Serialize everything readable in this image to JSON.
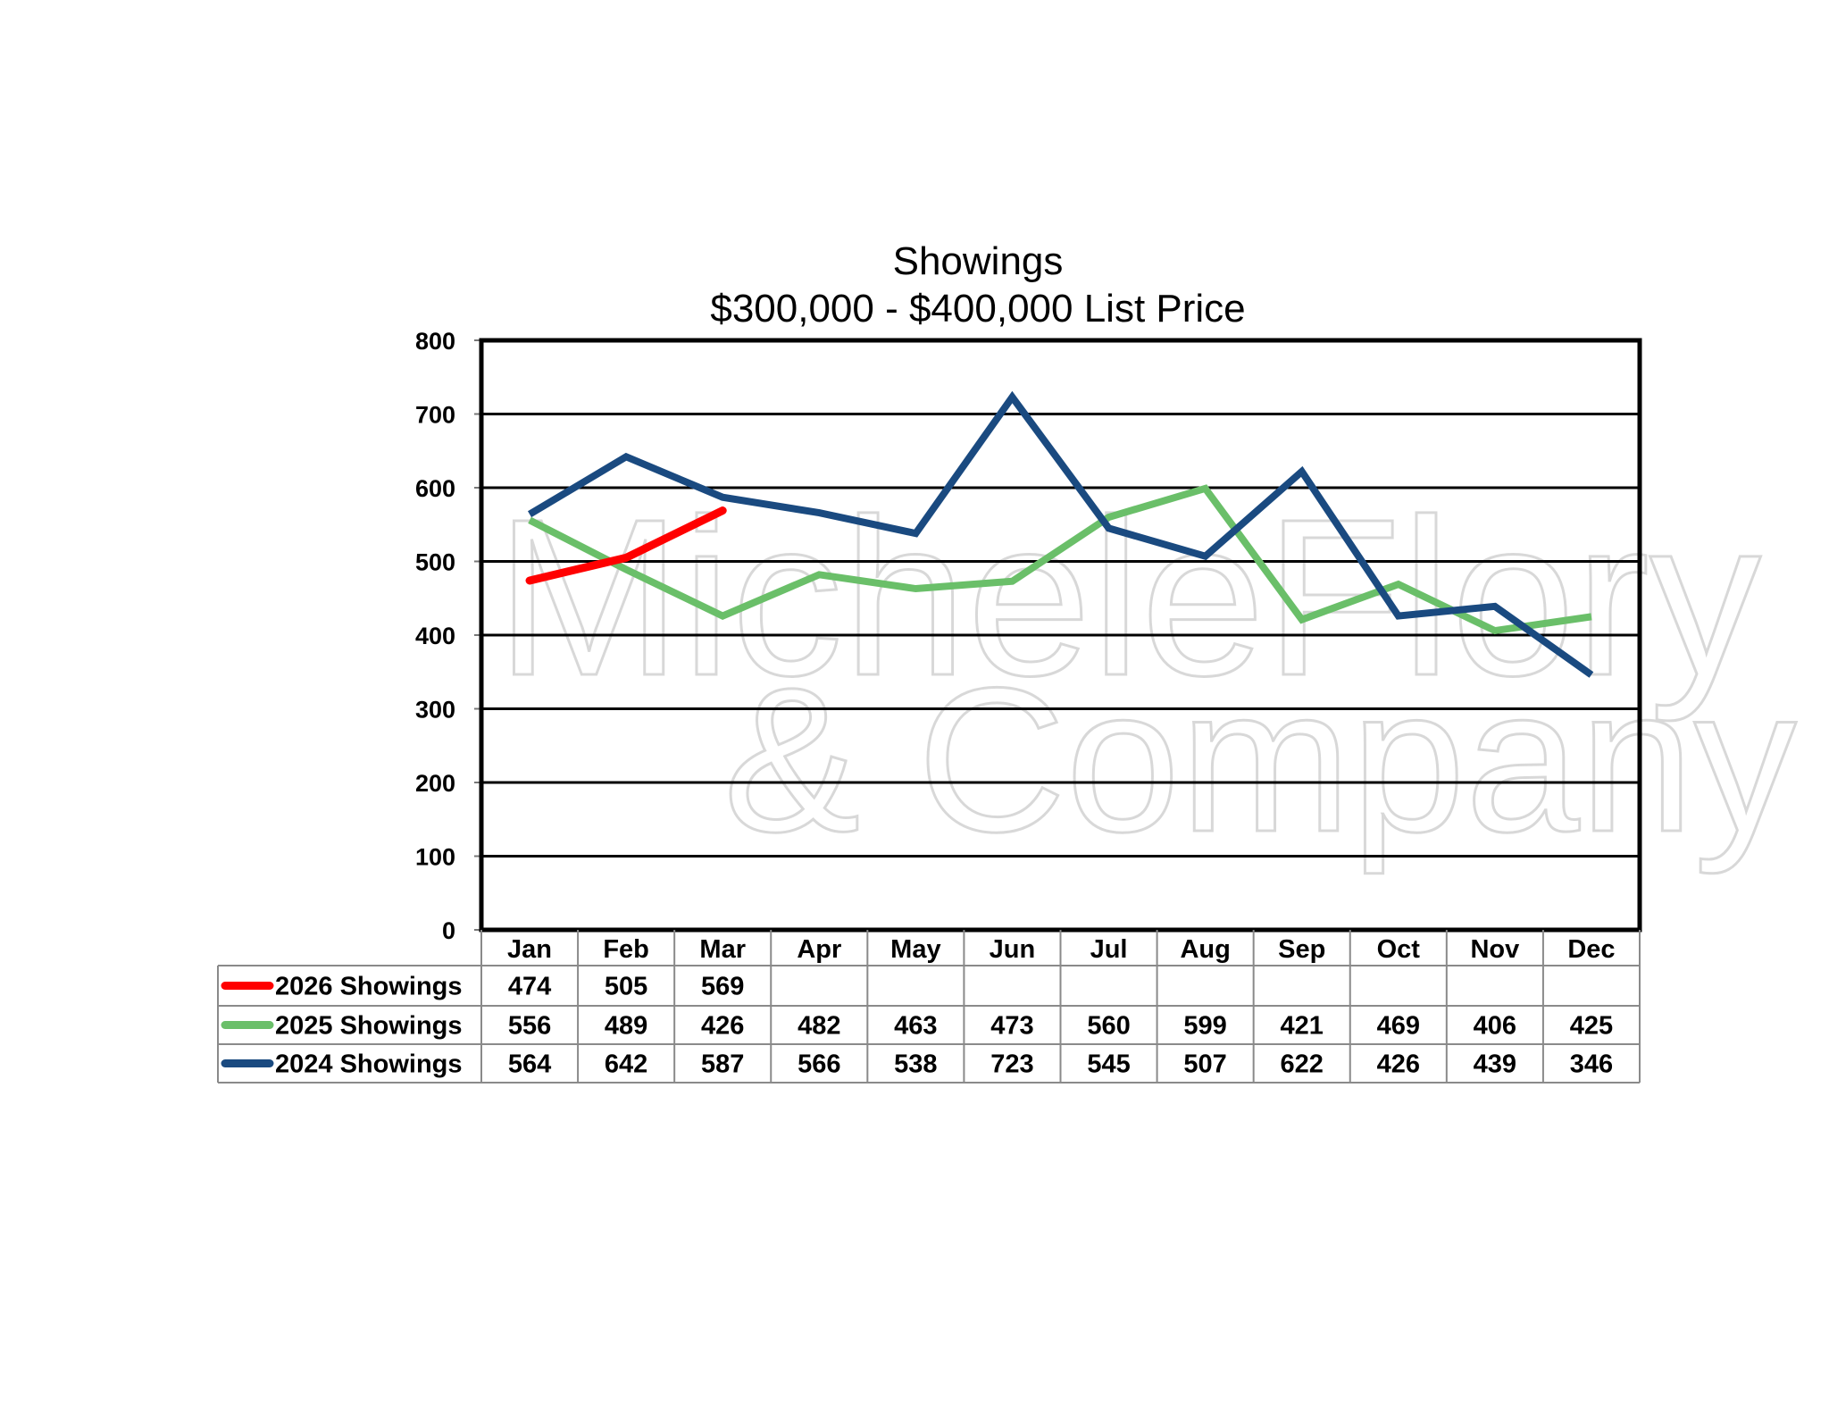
{
  "chart_data": {
    "type": "line",
    "title": "Showings",
    "subtitle": "$300,000 - $400,000 List Price",
    "categories": [
      "Jan",
      "Feb",
      "Mar",
      "Apr",
      "May",
      "Jun",
      "Jul",
      "Aug",
      "Sep",
      "Oct",
      "Nov",
      "Dec"
    ],
    "series": [
      {
        "name": "2026 Showings",
        "color": "#ff0000",
        "values": [
          474,
          505,
          569,
          null,
          null,
          null,
          null,
          null,
          null,
          null,
          null,
          null
        ]
      },
      {
        "name": "2025 Showings",
        "color": "#6abf69",
        "values": [
          556,
          489,
          426,
          482,
          463,
          473,
          560,
          599,
          421,
          469,
          406,
          425
        ]
      },
      {
        "name": "2024 Showings",
        "color": "#1a4a80",
        "values": [
          564,
          642,
          587,
          566,
          538,
          723,
          545,
          507,
          622,
          426,
          439,
          346
        ]
      }
    ],
    "ylim": [
      0,
      800
    ],
    "yticks": [
      0,
      100,
      200,
      300,
      400,
      500,
      600,
      700,
      800
    ],
    "grid": true,
    "legend": "data-table-below",
    "watermark": [
      "MicheleFlory",
      "& Company"
    ]
  }
}
